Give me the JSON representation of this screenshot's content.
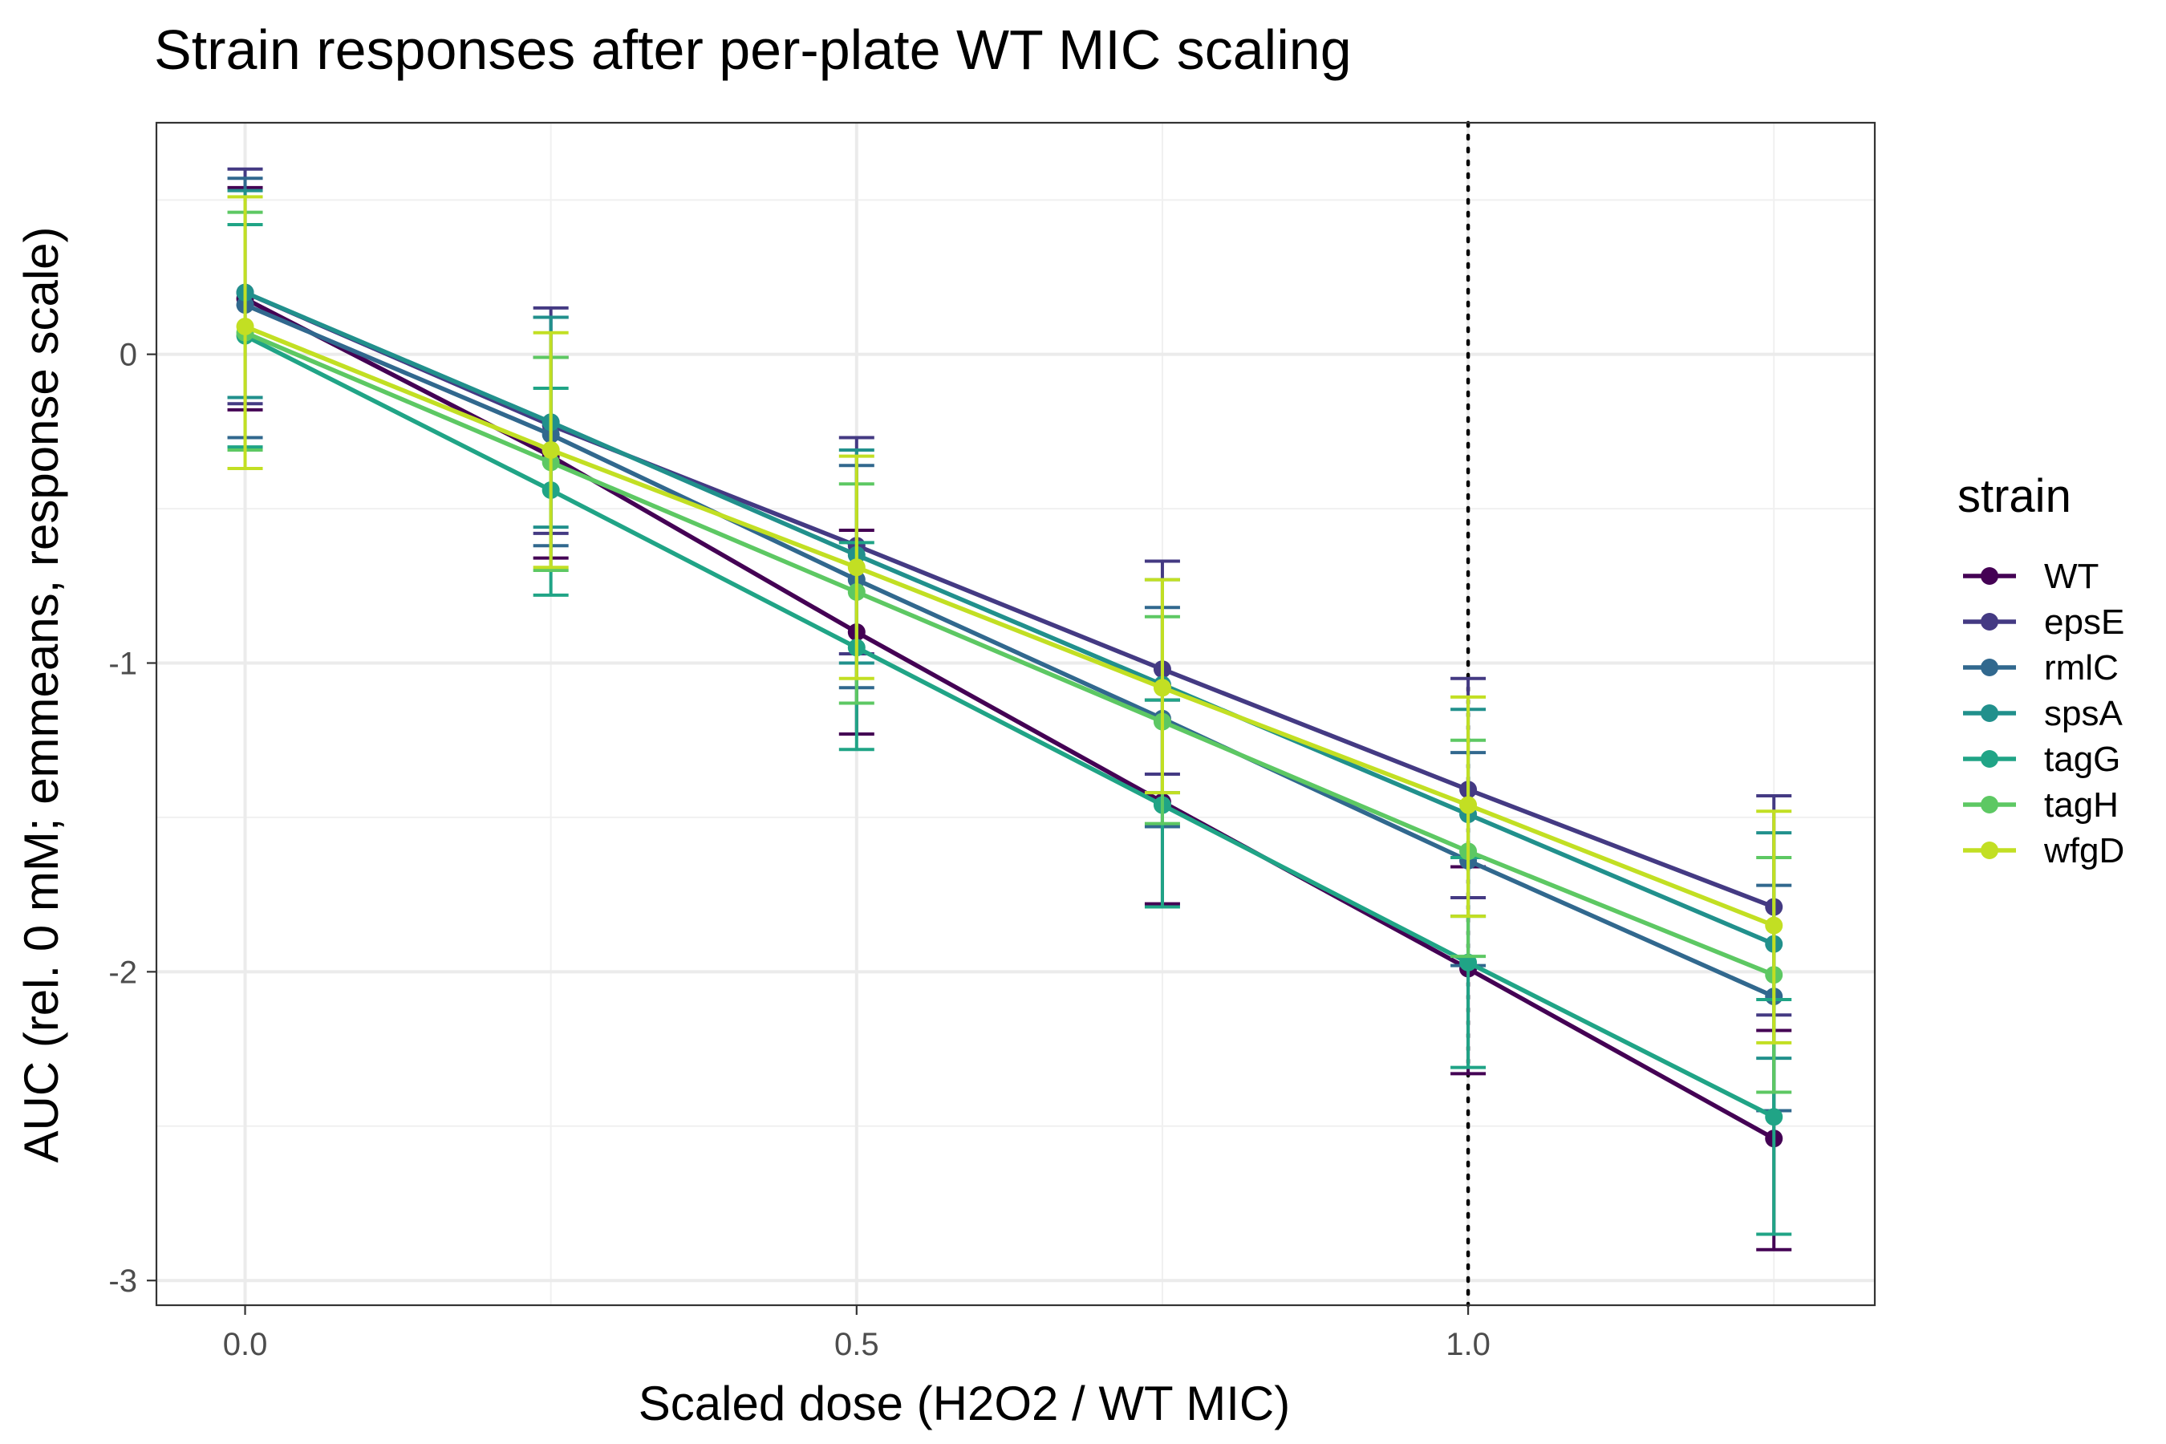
{
  "chart_data": {
    "type": "line",
    "title": "Strain responses after per-plate WT MIC scaling",
    "xlabel": "Scaled dose (H2O2 / WT MIC)",
    "ylabel": "AUC (rel. 0 mM; emmeans, response scale)",
    "xlim": [
      -0.0725,
      1.3325
    ],
    "ylim": [
      -3.08,
      0.75
    ],
    "x_ticks": [
      0.0,
      0.5,
      1.0
    ],
    "x_tick_labels": [
      "0.0",
      "0.5",
      "1.0"
    ],
    "y_ticks": [
      0,
      -1,
      -2,
      -3
    ],
    "y_tick_labels": [
      "0",
      "-1",
      "-2",
      "-3"
    ],
    "reference_line": {
      "x": 1.0,
      "style": "dotted"
    },
    "grid": true,
    "legend": {
      "title": "strain",
      "position": "right"
    },
    "x": [
      0.0,
      0.25,
      0.5,
      0.75,
      1.0,
      1.25
    ],
    "series": [
      {
        "name": "WT",
        "color": "#440154",
        "values": [
          0.18,
          -0.33,
          -0.9,
          -1.45,
          -1.99,
          -2.54
        ],
        "lower": [
          -0.18,
          -0.66,
          -1.23,
          -1.78,
          -2.33,
          -2.9
        ],
        "upper": [
          0.54,
          -0.01,
          -0.57,
          -1.12,
          -1.66,
          -2.19
        ]
      },
      {
        "name": "epsE",
        "color": "#443A83",
        "values": [
          0.2,
          -0.23,
          -0.62,
          -1.02,
          -1.41,
          -1.79
        ],
        "lower": [
          -0.16,
          -0.58,
          -0.97,
          -1.36,
          -1.76,
          -2.14
        ],
        "upper": [
          0.6,
          0.15,
          -0.27,
          -0.67,
          -1.05,
          -1.43
        ]
      },
      {
        "name": "rmlC",
        "color": "#31688E",
        "values": [
          0.16,
          -0.26,
          -0.73,
          -1.18,
          -1.64,
          -2.08
        ],
        "lower": [
          -0.27,
          -0.62,
          -1.08,
          -1.53,
          -1.98,
          -2.45
        ],
        "upper": [
          0.57,
          0.12,
          -0.36,
          -0.82,
          -1.29,
          -1.72
        ]
      },
      {
        "name": "spsA",
        "color": "#21908C",
        "values": [
          0.2,
          -0.22,
          -0.65,
          -1.07,
          -1.49,
          -1.91
        ],
        "lower": [
          -0.14,
          -0.56,
          -1.0,
          -1.42,
          -1.82,
          -2.28
        ],
        "upper": [
          0.53,
          0.12,
          -0.31,
          -0.73,
          -1.15,
          -1.55
        ]
      },
      {
        "name": "tagG",
        "color": "#20A486",
        "values": [
          0.06,
          -0.44,
          -0.95,
          -1.46,
          -1.97,
          -2.47
        ],
        "lower": [
          -0.3,
          -0.78,
          -1.28,
          -1.79,
          -2.31,
          -2.85
        ],
        "upper": [
          0.42,
          -0.11,
          -0.61,
          -1.12,
          -1.63,
          -2.09
        ]
      },
      {
        "name": "tagH",
        "color": "#5DC863",
        "values": [
          0.07,
          -0.35,
          -0.77,
          -1.19,
          -1.61,
          -2.01
        ],
        "lower": [
          -0.31,
          -0.7,
          -1.13,
          -1.52,
          -1.95,
          -2.39
        ],
        "upper": [
          0.46,
          -0.01,
          -0.42,
          -0.85,
          -1.25,
          -1.63
        ]
      },
      {
        "name": "wfgD",
        "color": "#C2DF23",
        "values": [
          0.09,
          -0.31,
          -0.69,
          -1.08,
          -1.46,
          -1.85
        ],
        "lower": [
          -0.37,
          -0.69,
          -1.05,
          -1.42,
          -1.82,
          -2.23
        ],
        "upper": [
          0.51,
          0.07,
          -0.33,
          -0.73,
          -1.11,
          -1.48
        ]
      }
    ]
  }
}
